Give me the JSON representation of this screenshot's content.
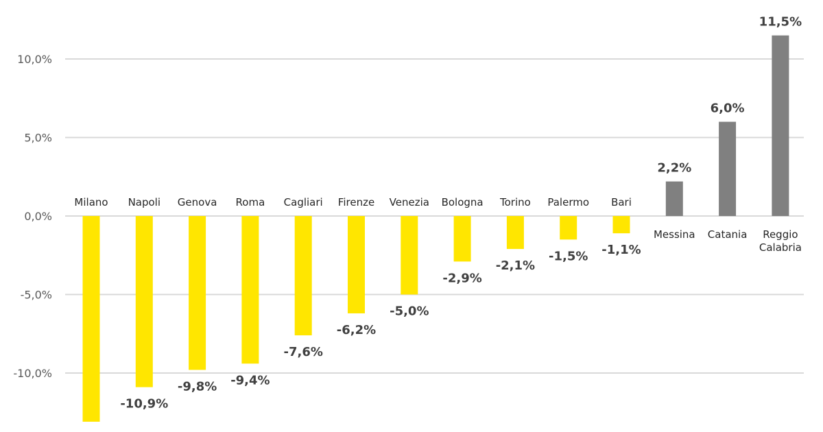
{
  "chart_data": {
    "type": "bar",
    "categories": [
      "Milano",
      "Napoli",
      "Genova",
      "Roma",
      "Cagliari",
      "Firenze",
      "Venezia",
      "Bologna",
      "Torino",
      "Palermo",
      "Bari",
      "Messina",
      "Catania",
      "Reggio Calabria"
    ],
    "values": [
      -13.1,
      -10.9,
      -9.8,
      -9.4,
      -7.6,
      -6.2,
      -5.0,
      -2.9,
      -2.1,
      -1.5,
      -1.1,
      2.2,
      6.0,
      11.5
    ],
    "data_labels": [
      "",
      "-10,9%",
      "-9,8%",
      "-9,4%",
      "-7,6%",
      "-6,2%",
      "-5,0%",
      "-2,9%",
      "-2,1%",
      "-1,5%",
      "-1,1%",
      "2,2%",
      "6,0%",
      "11,5%"
    ],
    "y_ticks": [
      10,
      5,
      0,
      -5,
      -10
    ],
    "y_tick_labels": [
      "10,0%",
      "5,0%",
      "0,0%",
      "-5,0%",
      "-10,0%"
    ],
    "ylim": [
      -13.3,
      12.7
    ],
    "grid": true,
    "colors": {
      "negative": "#ffe600",
      "positive": "#808080"
    }
  }
}
